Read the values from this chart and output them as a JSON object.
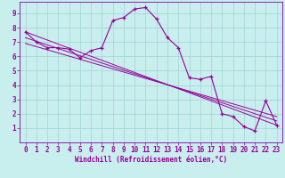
{
  "xlabel": "Windchill (Refroidissement éolien,°C)",
  "background_color": "#c8eeee",
  "grid_color": "#a0d4d4",
  "line_color": "#990099",
  "spine_color": "#8800aa",
  "xlim": [
    -0.5,
    23.5
  ],
  "ylim": [
    0,
    9.8
  ],
  "xticks": [
    0,
    1,
    2,
    3,
    4,
    5,
    6,
    7,
    8,
    9,
    10,
    11,
    12,
    13,
    14,
    15,
    16,
    17,
    18,
    19,
    20,
    21,
    22,
    23
  ],
  "yticks": [
    1,
    2,
    3,
    4,
    5,
    6,
    7,
    8,
    9
  ],
  "main_x": [
    0,
    1,
    2,
    3,
    4,
    5,
    6,
    7,
    8,
    9,
    10,
    11,
    12,
    13,
    14,
    15,
    16,
    17,
    18,
    19,
    20,
    21,
    22,
    23
  ],
  "main_y": [
    7.7,
    7.0,
    6.6,
    6.6,
    6.5,
    5.9,
    6.4,
    6.6,
    8.5,
    8.7,
    9.3,
    9.4,
    8.6,
    7.3,
    6.6,
    4.5,
    4.4,
    4.6,
    2.0,
    1.8,
    1.1,
    0.8,
    2.9,
    1.2
  ],
  "line1_x": [
    0,
    23
  ],
  "line1_y": [
    7.7,
    1.2
  ],
  "line2_x": [
    0,
    23
  ],
  "line2_y": [
    7.3,
    1.5
  ],
  "line3_x": [
    0,
    23
  ],
  "line3_y": [
    6.9,
    1.8
  ],
  "tick_fontsize": 5.5,
  "xlabel_fontsize": 5.5
}
